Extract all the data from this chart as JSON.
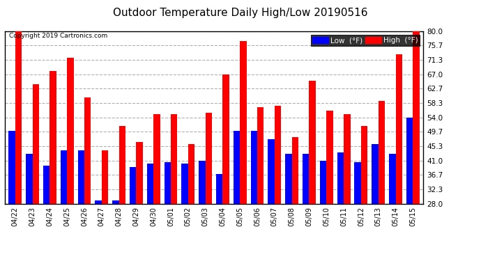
{
  "title": "Outdoor Temperature Daily High/Low 20190516",
  "copyright": "Copyright 2019 Cartronics.com",
  "dates": [
    "04/22",
    "04/23",
    "04/24",
    "04/25",
    "04/26",
    "04/27",
    "04/28",
    "04/29",
    "04/30",
    "05/01",
    "05/02",
    "05/03",
    "05/04",
    "05/05",
    "05/06",
    "05/07",
    "05/08",
    "05/09",
    "05/10",
    "05/11",
    "05/12",
    "05/13",
    "05/14",
    "05/15"
  ],
  "highs": [
    80.0,
    64.0,
    68.0,
    72.0,
    60.0,
    44.0,
    51.5,
    46.5,
    55.0,
    55.0,
    46.0,
    55.5,
    67.0,
    77.0,
    57.0,
    57.5,
    48.0,
    65.0,
    56.0,
    55.0,
    51.5,
    59.0,
    73.0,
    80.0
  ],
  "lows": [
    50.0,
    43.0,
    39.5,
    44.0,
    44.0,
    29.0,
    29.0,
    39.0,
    40.0,
    40.5,
    40.0,
    41.0,
    37.0,
    50.0,
    50.0,
    47.5,
    43.0,
    43.0,
    41.0,
    43.5,
    40.5,
    46.0,
    43.0,
    54.0
  ],
  "high_color": "#ff0000",
  "low_color": "#0000ff",
  "bg_color": "#ffffff",
  "plot_bg_color": "#ffffff",
  "grid_color": "#b0b0b0",
  "title_fontsize": 11,
  "ylabel_ticks": [
    28.0,
    32.3,
    36.7,
    41.0,
    45.3,
    49.7,
    54.0,
    58.3,
    62.7,
    67.0,
    71.3,
    75.7,
    80.0
  ],
  "ylim": [
    28.0,
    80.0
  ],
  "ybaseline": 28.0,
  "bar_width": 0.38
}
